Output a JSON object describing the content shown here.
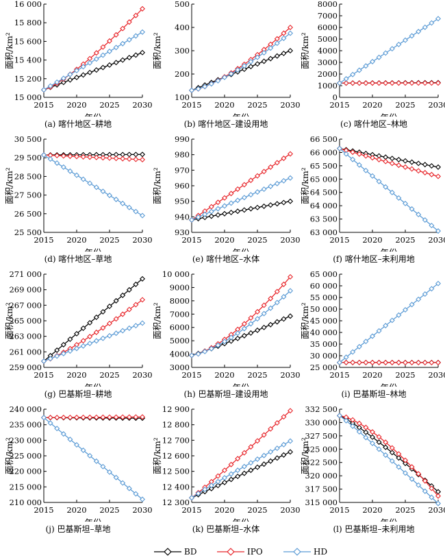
{
  "chart_data": [
    {
      "type": "line",
      "caption": "(a) 喀什地区–耕地",
      "xlabel": "年份",
      "ylabel": "面积/km²",
      "xlim": [
        2015,
        2030
      ],
      "xticks": [
        "2015",
        "2020",
        "2025",
        "2030"
      ],
      "ylim": [
        15000,
        16000
      ],
      "yticks": [
        "15 000",
        "15 200",
        "15 400",
        "15 600",
        "15 800",
        "16 000"
      ],
      "series": [
        {
          "name": "BD",
          "start": 15080,
          "end": 15480,
          "curve": 1.0
        },
        {
          "name": "IPO",
          "start": 15080,
          "end": 15950,
          "curve": 1.25
        },
        {
          "name": "HD",
          "start": 15080,
          "end": 15700,
          "curve": 1.0
        }
      ]
    },
    {
      "type": "line",
      "caption": "(b) 喀什地区–建设用地",
      "xlabel": "年份",
      "ylabel": "面积/km²",
      "xlim": [
        2015,
        2030
      ],
      "xticks": [
        "2015",
        "2020",
        "2025",
        "2030"
      ],
      "ylim": [
        100,
        500
      ],
      "yticks": [
        "100",
        "200",
        "300",
        "400",
        "500"
      ],
      "series": [
        {
          "name": "BD",
          "start": 130,
          "end": 300,
          "curve": 1.0
        },
        {
          "name": "IPO",
          "start": 130,
          "end": 400,
          "curve": 1.4
        },
        {
          "name": "HD",
          "start": 130,
          "end": 375,
          "curve": 1.35
        }
      ]
    },
    {
      "type": "line",
      "caption": "(c) 喀什地区–林地",
      "xlabel": "年份",
      "ylabel": "面积/km²",
      "xlim": [
        2015,
        2030
      ],
      "xticks": [
        "2015",
        "2020",
        "2025",
        "2030"
      ],
      "ylim": [
        0,
        8000
      ],
      "yticks": [
        "0",
        "1000",
        "2000",
        "3000",
        "4000",
        "5000",
        "6000",
        "7000",
        "8000"
      ],
      "series": [
        {
          "name": "BD",
          "start": 1220,
          "end": 1260,
          "curve": 1.0
        },
        {
          "name": "IPO",
          "start": 1220,
          "end": 1230,
          "curve": 1.0
        },
        {
          "name": "HD",
          "start": 1220,
          "end": 6750,
          "curve": 1.0
        }
      ]
    },
    {
      "type": "line",
      "caption": "(d) 喀什地区–草地",
      "xlabel": "年份",
      "ylabel": "面积/km²",
      "xlim": [
        2015,
        2030
      ],
      "xticks": [
        "2015",
        "2020",
        "2025",
        "2030"
      ],
      "ylim": [
        25500,
        30500
      ],
      "yticks": [
        "25 500",
        "26 500",
        "27 500",
        "28 500",
        "29 500",
        "30 500"
      ],
      "series": [
        {
          "name": "BD",
          "start": 29650,
          "end": 29680,
          "curve": 1.0
        },
        {
          "name": "IPO",
          "start": 29650,
          "end": 29400,
          "curve": 1.0
        },
        {
          "name": "HD",
          "start": 29650,
          "end": 26400,
          "curve": 1.0
        }
      ]
    },
    {
      "type": "line",
      "caption": "(e) 喀什地区–水体",
      "xlabel": "年份",
      "ylabel": "面积/km²",
      "xlim": [
        2015,
        2030
      ],
      "xticks": [
        "2015",
        "2020",
        "2025",
        "2030"
      ],
      "ylim": [
        930,
        990
      ],
      "yticks": [
        "930",
        "940",
        "950",
        "960",
        "970",
        "980",
        "990"
      ],
      "series": [
        {
          "name": "BD",
          "start": 938,
          "end": 950,
          "curve": 1.0
        },
        {
          "name": "IPO",
          "start": 938,
          "end": 980.5,
          "curve": 1.0
        },
        {
          "name": "HD",
          "start": 938,
          "end": 965,
          "curve": 1.0
        }
      ]
    },
    {
      "type": "line",
      "caption": "(f) 喀什地区–未利用地",
      "xlabel": "年份",
      "ylabel": "面积/km²",
      "xlim": [
        2015,
        2030
      ],
      "xticks": [
        "2015",
        "2020",
        "2025",
        "2030"
      ],
      "ylim": [
        63000,
        66500
      ],
      "yticks": [
        "63 000",
        "63 500",
        "64 000",
        "64 500",
        "65 000",
        "65 500",
        "66 000",
        "66 500"
      ],
      "series": [
        {
          "name": "BD",
          "start": 66150,
          "end": 65450,
          "curve": 1.0
        },
        {
          "name": "IPO",
          "start": 66150,
          "end": 65100,
          "curve": 1.0
        },
        {
          "name": "HD",
          "start": 66150,
          "end": 63050,
          "curve": 1.0
        }
      ]
    },
    {
      "type": "line",
      "caption": "(g) 巴基斯坦–耕地",
      "xlabel": "年份",
      "ylabel": "面积/km²",
      "xlim": [
        2015,
        2030
      ],
      "xticks": [
        "2015",
        "2020",
        "2025",
        "2030"
      ],
      "ylim": [
        259000,
        271000
      ],
      "yticks": [
        "259 000",
        "261 000",
        "263 000",
        "265 000",
        "267 000",
        "269 000",
        "271 000"
      ],
      "series": [
        {
          "name": "BD",
          "start": 259800,
          "end": 270400,
          "curve": 1.0
        },
        {
          "name": "IPO",
          "start": 259800,
          "end": 267700,
          "curve": 1.2
        },
        {
          "name": "HD",
          "start": 259800,
          "end": 264700,
          "curve": 1.0
        }
      ]
    },
    {
      "type": "line",
      "caption": "(h) 巴基斯坦–建设用地",
      "xlabel": "年份",
      "ylabel": "面积/km²",
      "xlim": [
        2015,
        2030
      ],
      "xticks": [
        "2015",
        "2020",
        "2025",
        "2030"
      ],
      "ylim": [
        3000,
        10000
      ],
      "yticks": [
        "3000",
        "4000",
        "5000",
        "6000",
        "7000",
        "8000",
        "9000",
        "10 000"
      ],
      "series": [
        {
          "name": "BD",
          "start": 3900,
          "end": 6850,
          "curve": 1.1
        },
        {
          "name": "IPO",
          "start": 3900,
          "end": 9800,
          "curve": 1.45
        },
        {
          "name": "HD",
          "start": 3900,
          "end": 8750,
          "curve": 1.4
        }
      ]
    },
    {
      "type": "line",
      "caption": "(i) 巴基斯坦–林地",
      "xlabel": "年份",
      "ylabel": "面积/km²",
      "xlim": [
        2015,
        2030
      ],
      "xticks": [
        "2015",
        "2020",
        "2025",
        "2030"
      ],
      "ylim": [
        25000,
        65000
      ],
      "yticks": [
        "25 000",
        "30 000",
        "35 000",
        "40 000",
        "45 000",
        "50 000",
        "55 000",
        "60 000",
        "65 000"
      ],
      "series": [
        {
          "name": "BD",
          "start": 27100,
          "end": 27100,
          "curve": 1.0
        },
        {
          "name": "IPO",
          "start": 27100,
          "end": 27050,
          "curve": 1.0
        },
        {
          "name": "HD",
          "start": 27100,
          "end": 61000,
          "curve": 1.0
        }
      ]
    },
    {
      "type": "line",
      "caption": "(j) 巴基斯坦–草地",
      "xlabel": "年份",
      "ylabel": "面积/km²",
      "xlim": [
        2015,
        2030
      ],
      "xticks": [
        "2015",
        "2020",
        "2025",
        "2030"
      ],
      "ylim": [
        210000,
        240000
      ],
      "yticks": [
        "210 000",
        "215 000",
        "220 000",
        "225 000",
        "230 000",
        "235 000",
        "240 000"
      ],
      "series": [
        {
          "name": "BD",
          "start": 237300,
          "end": 237100,
          "curve": 1.0
        },
        {
          "name": "IPO",
          "start": 237300,
          "end": 237500,
          "curve": 1.0
        },
        {
          "name": "HD",
          "start": 237300,
          "end": 211000,
          "curve": 1.0
        }
      ]
    },
    {
      "type": "line",
      "caption": "(k) 巴基斯坦–水体",
      "xlabel": "年份",
      "ylabel": "面积/km²",
      "xlim": [
        2015,
        2030
      ],
      "xticks": [
        "2015",
        "2020",
        "2025",
        "2030"
      ],
      "ylim": [
        12300,
        12900
      ],
      "yticks": [
        "12 300",
        "12 400",
        "12 500",
        "12 600",
        "12 700",
        "12 800",
        "12 900"
      ],
      "series": [
        {
          "name": "BD",
          "start": 12330,
          "end": 12625,
          "curve": 1.0
        },
        {
          "name": "IPO",
          "start": 12330,
          "end": 12890,
          "curve": 1.05
        },
        {
          "name": "HD",
          "start": 12330,
          "end": 12695,
          "curve": 0.95
        }
      ]
    },
    {
      "type": "line",
      "caption": "(l) 巴基斯坦–未利用地",
      "xlabel": "年份",
      "ylabel": "面积/km²",
      "xlim": [
        2015,
        2030
      ],
      "xticks": [
        "2015",
        "2020",
        "2025",
        "2030"
      ],
      "ylim": [
        315000,
        332500
      ],
      "yticks": [
        "315 000",
        "317 500",
        "320 000",
        "322 500",
        "325 000",
        "327 500",
        "330 000",
        "332 500"
      ],
      "series": [
        {
          "name": "BD",
          "start": 331300,
          "end": 317000,
          "curve": 1.15
        },
        {
          "name": "IPO",
          "start": 331300,
          "end": 316200,
          "curve": 1.45
        },
        {
          "name": "HD",
          "start": 331300,
          "end": 314800,
          "curve": 1.05
        }
      ]
    }
  ],
  "legend": [
    {
      "name": "BD",
      "color": "#000000"
    },
    {
      "name": "IPO",
      "color": "#e8262b"
    },
    {
      "name": "HD",
      "color": "#5b9bd5"
    }
  ],
  "colors": {
    "BD": "#000000",
    "IPO": "#e8262b",
    "HD": "#5b9bd5"
  },
  "x_years": [
    2015,
    2016,
    2017,
    2018,
    2019,
    2020,
    2021,
    2022,
    2023,
    2024,
    2025,
    2026,
    2027,
    2028,
    2029,
    2030
  ]
}
